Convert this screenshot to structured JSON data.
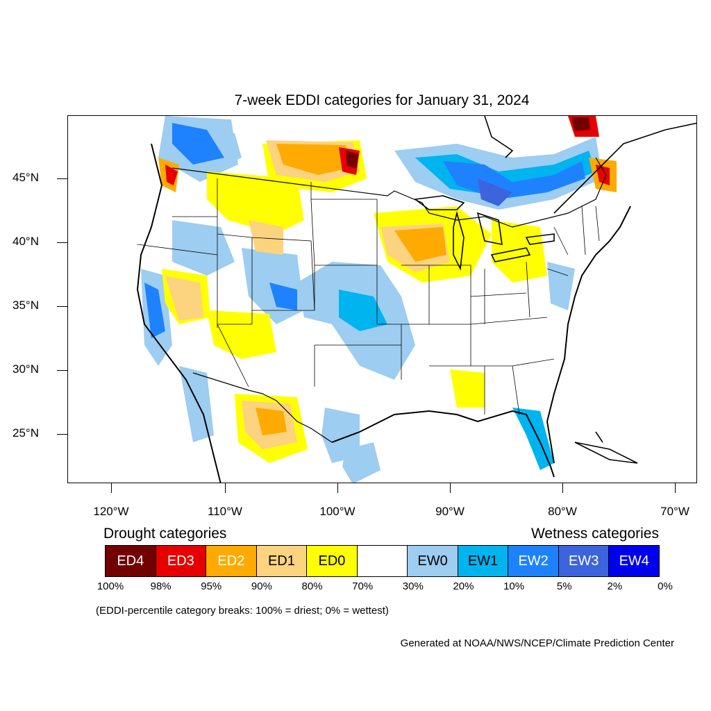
{
  "title": "7-week EDDI categories for January 31, 2024",
  "axes": {
    "lat_labels": [
      "45°N",
      "40°N",
      "35°N",
      "30°N",
      "25°N"
    ],
    "lon_labels": [
      "120°W",
      "110°W",
      "100°W",
      "90°W",
      "80°W",
      "70°W"
    ]
  },
  "legend": {
    "drought_heading": "Drought categories",
    "wetness_heading": "Wetness categories",
    "cells": [
      {
        "label": "ED4",
        "color": "#730000",
        "text_color": "#ffffff"
      },
      {
        "label": "ED3",
        "color": "#e60000",
        "text_color": "#ffffff"
      },
      {
        "label": "ED2",
        "color": "#ffaa00",
        "text_color": "#ffffff"
      },
      {
        "label": "ED1",
        "color": "#fcd37f",
        "text_color": "#000000"
      },
      {
        "label": "ED0",
        "color": "#ffff00",
        "text_color": "#000000"
      },
      {
        "label": "",
        "color": "#ffffff",
        "text_color": "#000000"
      },
      {
        "label": "EW0",
        "color": "#9dcdf0",
        "text_color": "#000000"
      },
      {
        "label": "EW1",
        "color": "#00b4f0",
        "text_color": "#000000"
      },
      {
        "label": "EW2",
        "color": "#1e82ff",
        "text_color": "#ffffff"
      },
      {
        "label": "EW3",
        "color": "#3c64dc",
        "text_color": "#ffffff"
      },
      {
        "label": "EW4",
        "color": "#0000f0",
        "text_color": "#ffffff"
      }
    ],
    "percentiles": [
      "100%",
      "98%",
      "95%",
      "90%",
      "80%",
      "70%",
      "30%",
      "20%",
      "10%",
      "5%",
      "2%",
      "0%"
    ]
  },
  "note": "(EDDI-percentile category breaks: 100% = driest; 0% = wettest)",
  "credit": "Generated at NOAA/NWS/NCEP/Climate Prediction Center"
}
